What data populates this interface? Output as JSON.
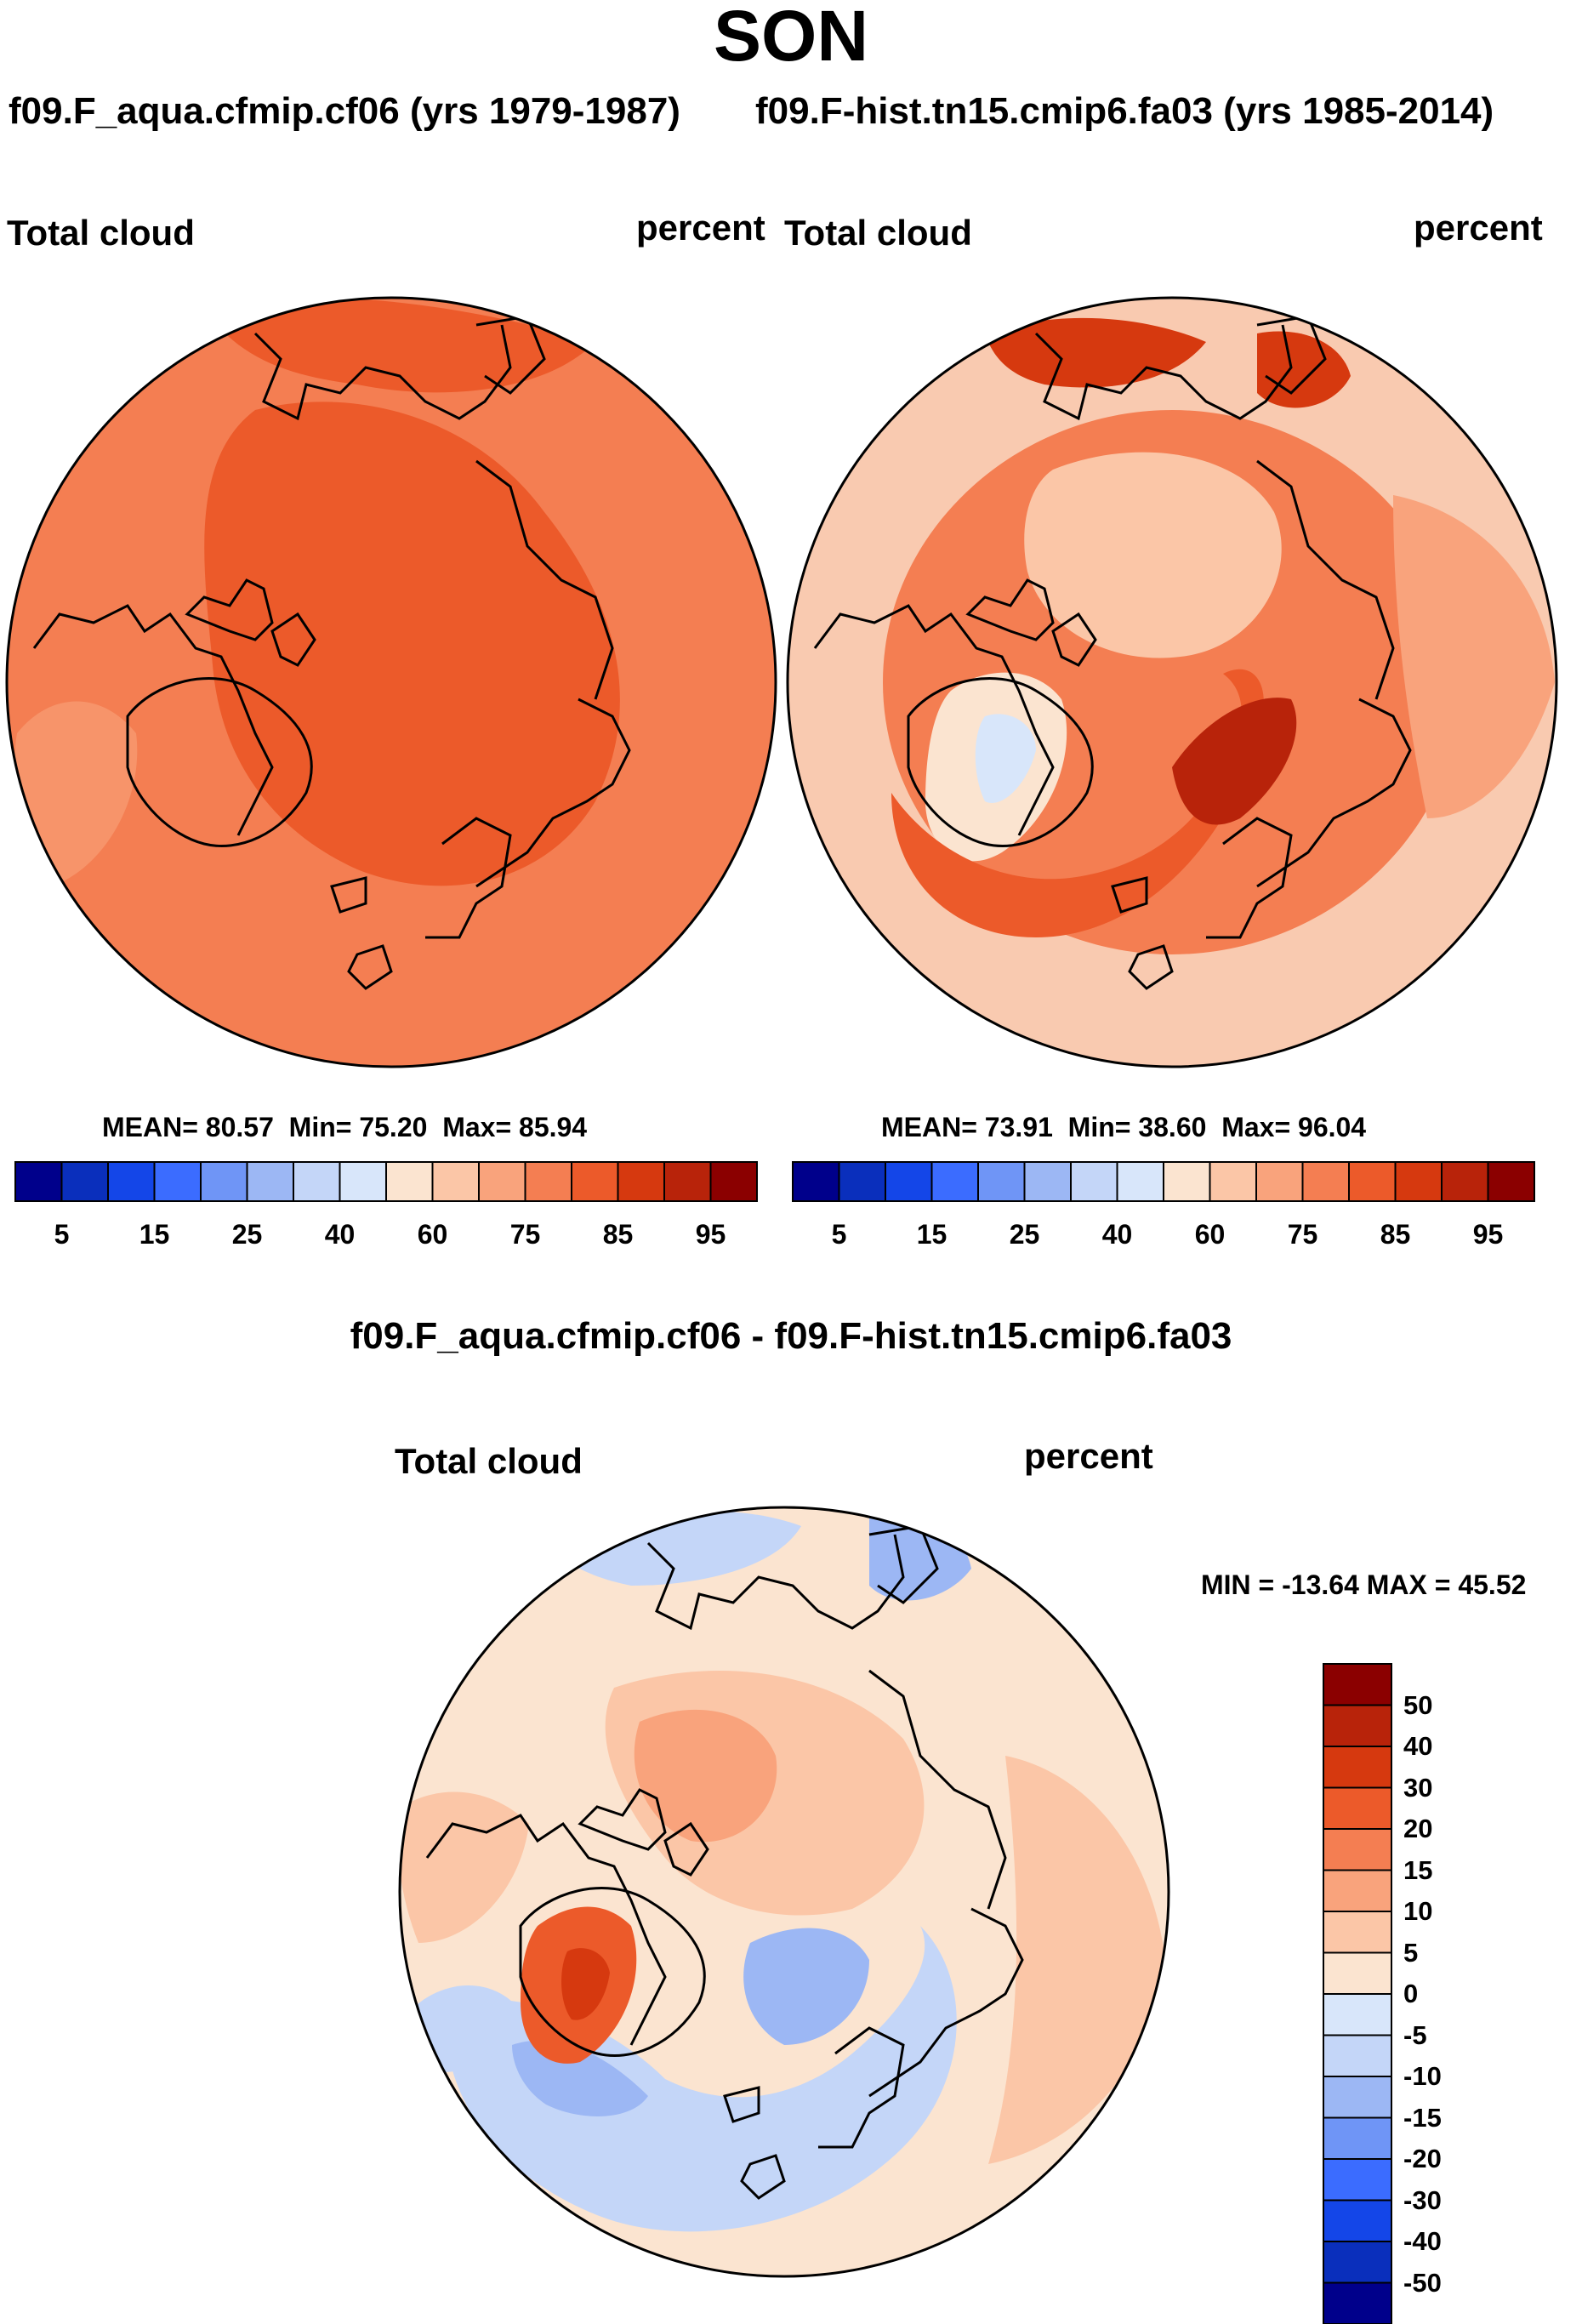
{
  "title": "SON",
  "panels": [
    {
      "case_label": "f09.F_aqua.cfmip.cf06 (yrs 1979-1987)",
      "variable": "Total cloud",
      "units": "percent",
      "stats": {
        "mean_label": "MEAN=",
        "mean": "80.57",
        "min_label": "Min=",
        "min": "75.20",
        "max_label": "Max=",
        "max": "85.94"
      }
    },
    {
      "case_label": "f09.F-hist.tn15.cmip6.fa03 (yrs 1985-2014)",
      "variable": "Total cloud",
      "units": "percent",
      "stats": {
        "mean_label": "MEAN=",
        "mean": "73.91",
        "min_label": "Min=",
        "min": "38.60",
        "max_label": "Max=",
        "max": "96.04"
      }
    }
  ],
  "diff_panel": {
    "case_label": "f09.F_aqua.cfmip.cf06 - f09.F-hist.tn15.cmip6.fa03",
    "variable": "Total cloud",
    "units": "percent",
    "minmax": "MIN = -13.64 MAX =  45.52"
  },
  "abs_colorbar": {
    "colors": [
      "#00008b",
      "#0a2fbc",
      "#1446e8",
      "#3b6cff",
      "#6f95f6",
      "#9cb7f4",
      "#c4d6f8",
      "#d8e6fa",
      "#fbe4d0",
      "#fbc6a7",
      "#f9a37c",
      "#f47e52",
      "#ec5a2a",
      "#d6390f",
      "#b8230a",
      "#8b0000"
    ],
    "tick_labels": [
      "5",
      "15",
      "25",
      "40",
      "60",
      "75",
      "85",
      "95"
    ]
  },
  "diff_colorbar": {
    "colors": [
      "#00008b",
      "#0a2fbc",
      "#1446e8",
      "#3b6cff",
      "#6f95f6",
      "#9cb7f4",
      "#c4d6f8",
      "#d8e6fa",
      "#fbe4d0",
      "#fbc6a7",
      "#f9a37c",
      "#f47e52",
      "#ec5a2a",
      "#d6390f",
      "#b8230a",
      "#8b0000"
    ],
    "tick_labels": [
      "-50",
      "-40",
      "-30",
      "-20",
      "-15",
      "-10",
      "-5",
      "0",
      "5",
      "10",
      "15",
      "20",
      "30",
      "40",
      "50"
    ]
  },
  "chart_data": [
    {
      "type": "heatmap",
      "projection": "polar stereographic (north)",
      "title": "f09.F_aqua.cfmip.cf06 (yrs 1979-1987)",
      "variable": "Total cloud",
      "units": "percent",
      "mean": 80.57,
      "min": 75.2,
      "max": 85.94,
      "levels": [
        5,
        10,
        15,
        20,
        25,
        30,
        40,
        50,
        60,
        70,
        75,
        80,
        85,
        90,
        95
      ]
    },
    {
      "type": "heatmap",
      "projection": "polar stereographic (north)",
      "title": "f09.F-hist.tn15.cmip6.fa03 (yrs 1985-2014)",
      "variable": "Total cloud",
      "units": "percent",
      "mean": 73.91,
      "min": 38.6,
      "max": 96.04,
      "levels": [
        5,
        10,
        15,
        20,
        25,
        30,
        40,
        50,
        60,
        70,
        75,
        80,
        85,
        90,
        95
      ]
    },
    {
      "type": "heatmap",
      "projection": "polar stereographic (north)",
      "title": "f09.F_aqua.cfmip.cf06 - f09.F-hist.tn15.cmip6.fa03",
      "variable": "Total cloud",
      "units": "percent",
      "min": -13.64,
      "max": 45.52,
      "levels": [
        -50,
        -40,
        -30,
        -20,
        -15,
        -10,
        -5,
        0,
        5,
        10,
        15,
        20,
        30,
        40,
        50
      ]
    }
  ]
}
